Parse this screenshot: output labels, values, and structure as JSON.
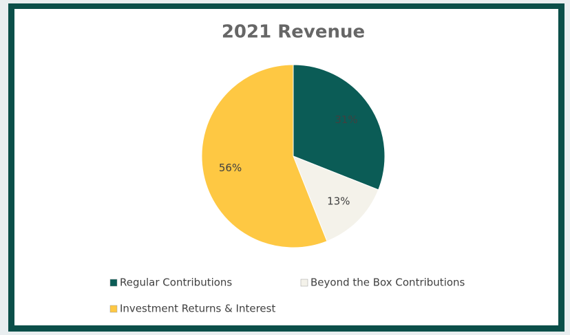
{
  "chart_data": {
    "type": "pie",
    "title": "2021 Revenue",
    "categories": [
      "Regular Contributions",
      "Beyond the Box Contributions",
      "Investment Returns & Interest"
    ],
    "values": [
      31,
      13,
      56
    ],
    "value_labels": [
      "31%",
      "13%",
      "56%"
    ],
    "colors": [
      "#0b5c56",
      "#f4f2ea",
      "#fec843"
    ],
    "legend": "bottom"
  }
}
